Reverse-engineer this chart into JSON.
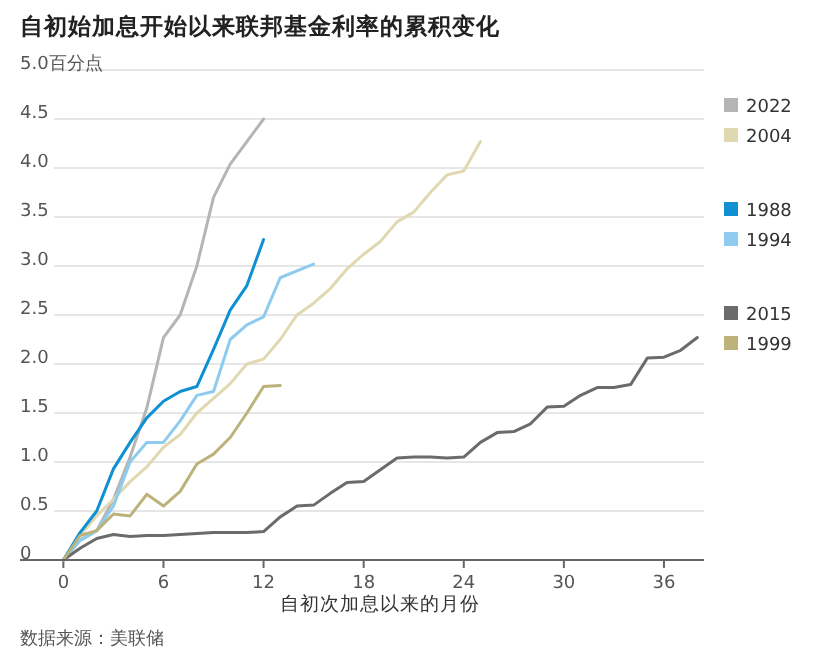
{
  "chart_data": {
    "type": "line",
    "title": "自初始加息开始以来联邦基金利率的累积变化",
    "xlabel": "自初次加息以来的月份",
    "annotations": [
      "数据来源：美联储"
    ],
    "xlim": [
      -2.6,
      38.4
    ],
    "xticks": [
      0,
      6,
      12,
      18,
      24,
      30,
      36
    ],
    "ylim": [
      0,
      5
    ],
    "yticks": [
      0,
      {
        "value": 0.5,
        "label": "0.5"
      },
      {
        "value": 1,
        "label": "1.0"
      },
      {
        "value": 1.5,
        "label": "1.5"
      },
      {
        "value": 2,
        "label": "2.0"
      },
      {
        "value": 2.5,
        "label": "2.5"
      },
      {
        "value": 3,
        "label": "3.0"
      },
      {
        "value": 3.5,
        "label": "3.5"
      },
      {
        "value": 4,
        "label": "4.0"
      },
      {
        "value": 4.5,
        "label": "4.5"
      },
      {
        "value": 5,
        "label": "5.0百分点"
      }
    ],
    "grid": "y",
    "legend": "right",
    "series": [
      {
        "name": "2022",
        "color": "#b5b5b5",
        "x": [
          0,
          1,
          2,
          3,
          4,
          5,
          6,
          7,
          8,
          9,
          10,
          11,
          12
        ],
        "values": [
          0,
          0.2,
          0.3,
          0.62,
          1.05,
          1.55,
          2.27,
          2.5,
          3.0,
          3.7,
          4.04,
          4.27,
          4.5
        ]
      },
      {
        "name": "2004",
        "color": "#e0d8b0",
        "x": [
          0,
          1,
          2,
          3,
          4,
          5,
          6,
          7,
          8,
          9,
          10,
          11,
          12,
          13,
          14,
          15,
          16,
          17,
          18,
          19,
          20,
          21,
          22,
          23,
          24,
          25
        ],
        "values": [
          0,
          0.25,
          0.45,
          0.62,
          0.8,
          0.95,
          1.15,
          1.28,
          1.5,
          1.65,
          1.8,
          2.0,
          2.05,
          2.25,
          2.5,
          2.62,
          2.77,
          2.97,
          3.12,
          3.25,
          3.45,
          3.55,
          3.75,
          3.93,
          3.97,
          4.27
        ]
      },
      {
        "name": "1988",
        "color": "#0e90d2",
        "x": [
          0,
          1,
          2,
          3,
          4,
          5,
          6,
          7,
          8,
          9,
          10,
          11,
          12
        ],
        "values": [
          0,
          0.28,
          0.5,
          0.93,
          1.2,
          1.45,
          1.62,
          1.72,
          1.77,
          2.15,
          2.55,
          2.8,
          3.27
        ]
      },
      {
        "name": "1994",
        "color": "#8ecbef",
        "x": [
          0,
          1,
          2,
          3,
          4,
          5,
          6,
          7,
          8,
          9,
          10,
          11,
          12,
          13,
          14,
          15
        ],
        "values": [
          0,
          0.2,
          0.3,
          0.55,
          1.0,
          1.2,
          1.2,
          1.42,
          1.68,
          1.72,
          2.25,
          2.4,
          2.48,
          2.88,
          2.95,
          3.02
        ]
      },
      {
        "name": "2015",
        "color": "#6b6b6b",
        "x": [
          0,
          1,
          2,
          3,
          4,
          5,
          6,
          7,
          8,
          9,
          10,
          11,
          12,
          13,
          14,
          15,
          16,
          17,
          18,
          19,
          20,
          21,
          22,
          23,
          24,
          25,
          26,
          27,
          28,
          29,
          30,
          31,
          32,
          33,
          34,
          35,
          36,
          37,
          38
        ],
        "values": [
          0,
          0.12,
          0.22,
          0.26,
          0.24,
          0.25,
          0.25,
          0.26,
          0.27,
          0.28,
          0.28,
          0.28,
          0.29,
          0.44,
          0.55,
          0.56,
          0.68,
          0.79,
          0.8,
          0.92,
          1.04,
          1.05,
          1.05,
          1.04,
          1.05,
          1.2,
          1.3,
          1.31,
          1.39,
          1.56,
          1.57,
          1.68,
          1.76,
          1.76,
          1.79,
          2.06,
          2.07,
          2.14,
          2.27
        ]
      },
      {
        "name": "1999",
        "color": "#bcb27a",
        "x": [
          0,
          1,
          2,
          3,
          4,
          5,
          6,
          7,
          8,
          9,
          10,
          11,
          12,
          13
        ],
        "values": [
          0,
          0.25,
          0.3,
          0.47,
          0.45,
          0.67,
          0.55,
          0.7,
          0.98,
          1.08,
          1.25,
          1.5,
          1.77,
          1.78
        ]
      }
    ]
  }
}
